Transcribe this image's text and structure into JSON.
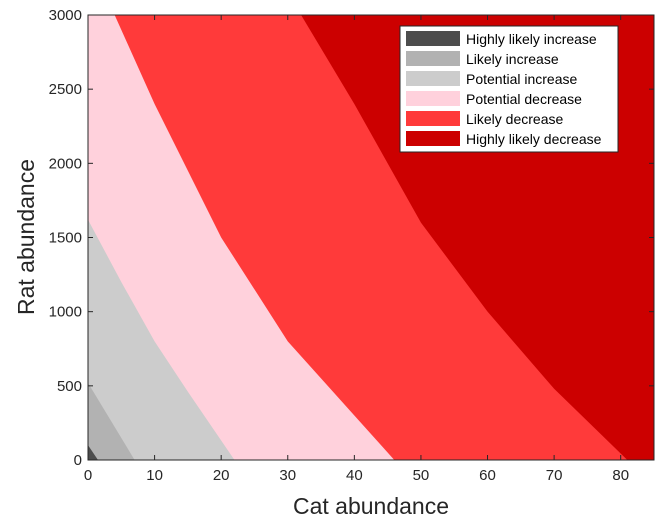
{
  "chart_data": {
    "type": "area",
    "title": "",
    "xlabel": "Cat abundance",
    "ylabel": "Rat abundance",
    "xlim": [
      0,
      85
    ],
    "ylim": [
      0,
      3000
    ],
    "xticks": [
      0,
      10,
      20,
      30,
      40,
      50,
      60,
      70,
      80
    ],
    "yticks": [
      0,
      500,
      1000,
      1500,
      2000,
      2500,
      3000
    ],
    "grid": false,
    "legend_position": "top-right",
    "regions": [
      {
        "name": "Highly likely increase",
        "color": "#4d4d4d"
      },
      {
        "name": "Likely increase",
        "color": "#b2b2b2"
      },
      {
        "name": "Potential increase",
        "color": "#cccccc"
      },
      {
        "name": "Potential decrease",
        "color": "#ffd1dc"
      },
      {
        "name": "Likely decrease",
        "color": "#ff3a3a"
      },
      {
        "name": "Highly likely decrease",
        "color": "#cc0000"
      }
    ],
    "boundaries": [
      {
        "between": [
          "Highly likely increase",
          "Likely increase"
        ],
        "points": [
          [
            0,
            100
          ],
          [
            1.5,
            0
          ]
        ]
      },
      {
        "between": [
          "Likely increase",
          "Potential increase"
        ],
        "points": [
          [
            0,
            520
          ],
          [
            7,
            0
          ]
        ]
      },
      {
        "between": [
          "Potential increase",
          "Potential decrease"
        ],
        "points": [
          [
            0,
            1620
          ],
          [
            5,
            1200
          ],
          [
            10,
            800
          ],
          [
            15,
            460
          ],
          [
            22,
            0
          ]
        ]
      },
      {
        "between": [
          "Potential decrease",
          "Likely decrease"
        ],
        "points": [
          [
            4,
            3000
          ],
          [
            10,
            2400
          ],
          [
            20,
            1500
          ],
          [
            30,
            800
          ],
          [
            40,
            300
          ],
          [
            46,
            0
          ]
        ]
      },
      {
        "between": [
          "Likely decrease",
          "Highly likely decrease"
        ],
        "points": [
          [
            32,
            3000
          ],
          [
            40,
            2400
          ],
          [
            50,
            1600
          ],
          [
            60,
            1000
          ],
          [
            70,
            480
          ],
          [
            81,
            0
          ]
        ]
      }
    ]
  }
}
